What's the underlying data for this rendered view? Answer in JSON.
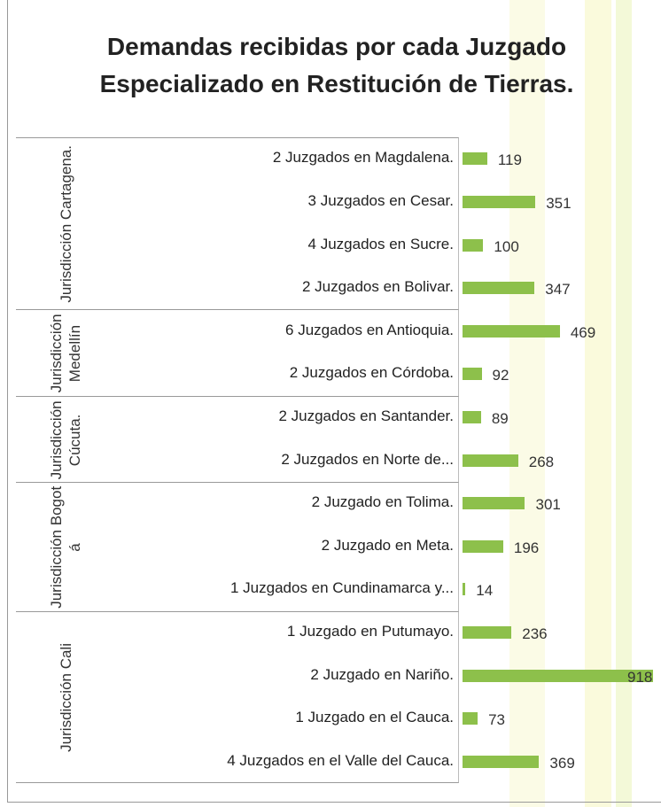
{
  "chart_data": {
    "type": "bar",
    "orientation": "horizontal",
    "title": "Demandas recibidas por cada Juzgado Especializado en Restitución de Tierras.",
    "color": "#8dc04b",
    "groups": [
      {
        "label": "Jurisdicción Cartagena.",
        "categories": [
          "2 Juzgados en Magdalena.",
          "3 Juzgados en Cesar.",
          "4 Juzgados en Sucre.",
          "2 Juzgados en Bolivar."
        ],
        "values": [
          119,
          351,
          100,
          347
        ]
      },
      {
        "label": "Jurisdicción Medellín",
        "categories": [
          "6 Juzgados en Antioquia.",
          "2 Juzgados en Córdoba."
        ],
        "values": [
          469,
          92
        ]
      },
      {
        "label": "Jurisdicción Cúcuta.",
        "categories": [
          "2 Juzgados en Santander.",
          "2 Juzgados en Norte de..."
        ],
        "values": [
          89,
          268
        ]
      },
      {
        "label": "Jurisdicción Bogotá",
        "categories": [
          "2 Juzgado en Tolima.",
          "2 Juzgado en Meta.",
          "1 Juzgados en Cundinamarca y..."
        ],
        "values": [
          301,
          196,
          14
        ]
      },
      {
        "label": "Jurisdicción Cali",
        "categories": [
          "1 Juzgado en Putumayo.",
          "2 Juzgado en Nariño.",
          "1 Juzgado en el Cauca.",
          "4 Juzgados en el Valle del Cauca."
        ],
        "values": [
          236,
          918,
          73,
          369
        ]
      }
    ]
  }
}
